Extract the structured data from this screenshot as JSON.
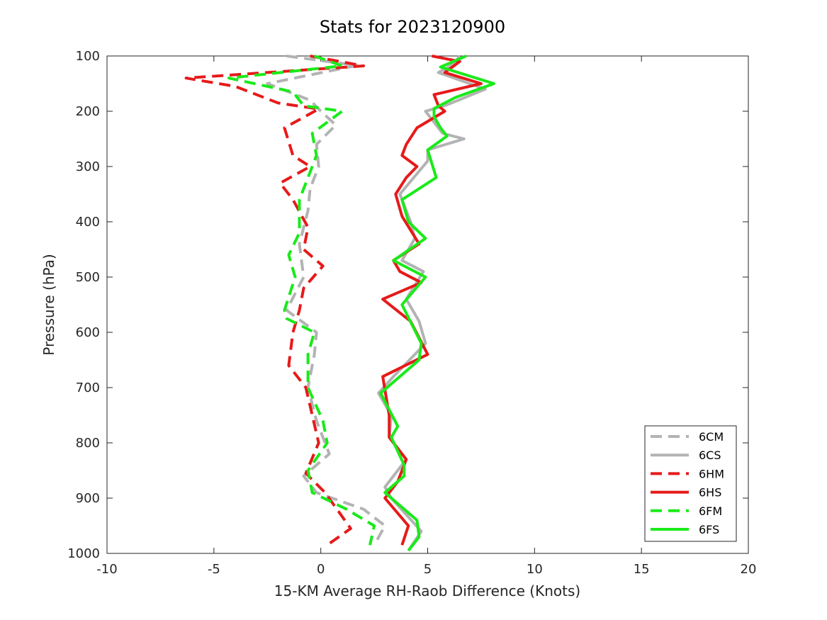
{
  "chart_data": {
    "type": "line",
    "title": "Stats for 2023120900",
    "xlabel": "15-KM Average RH-Raob Difference (Knots)",
    "ylabel": "Pressure (hPa)",
    "xlim": [
      -10,
      20
    ],
    "ylim": [
      100,
      1000
    ],
    "y_reversed": true,
    "x_ticks": [
      -10,
      -5,
      0,
      5,
      10,
      15,
      20
    ],
    "y_ticks": [
      100,
      200,
      300,
      400,
      500,
      600,
      700,
      800,
      900,
      1000
    ],
    "legend_location": "bottom-right",
    "grid": false,
    "series": [
      {
        "name": "6CM",
        "color": "#b3b3b3",
        "dashed": true,
        "points": [
          [
            -1.6,
            100
          ],
          [
            1.7,
            117
          ],
          [
            -2.5,
            150
          ],
          [
            -0.5,
            180
          ],
          [
            -0.1,
            196
          ],
          [
            0.7,
            225
          ],
          [
            -0.2,
            260
          ],
          [
            -0.1,
            300
          ],
          [
            -0.5,
            340
          ],
          [
            -0.6,
            380
          ],
          [
            -1.0,
            440
          ],
          [
            -0.8,
            500
          ],
          [
            -1.6,
            560
          ],
          [
            -0.2,
            600
          ],
          [
            -0.3,
            640
          ],
          [
            -0.6,
            700
          ],
          [
            -0.2,
            760
          ],
          [
            0.4,
            820
          ],
          [
            -0.8,
            860
          ],
          [
            -0.2,
            890
          ],
          [
            2.0,
            920
          ],
          [
            3.0,
            950
          ],
          [
            2.5,
            985
          ]
        ]
      },
      {
        "name": "6CS",
        "color": "#b3b3b3",
        "dashed": false,
        "points": [
          [
            6.5,
            100
          ],
          [
            6.2,
            115
          ],
          [
            5.5,
            130
          ],
          [
            7.7,
            160
          ],
          [
            5.8,
            190
          ],
          [
            4.9,
            200
          ],
          [
            5.7,
            240
          ],
          [
            6.7,
            250
          ],
          [
            5.0,
            270
          ],
          [
            5.0,
            290
          ],
          [
            3.7,
            350
          ],
          [
            4.2,
            400
          ],
          [
            4.4,
            430
          ],
          [
            3.8,
            470
          ],
          [
            4.8,
            490
          ],
          [
            4.0,
            540
          ],
          [
            4.6,
            580
          ],
          [
            4.9,
            620
          ],
          [
            3.4,
            680
          ],
          [
            2.7,
            710
          ],
          [
            3.3,
            750
          ],
          [
            3.2,
            790
          ],
          [
            4.0,
            830
          ],
          [
            3.0,
            880
          ],
          [
            3.3,
            900
          ],
          [
            4.7,
            960
          ],
          [
            4.1,
            995
          ]
        ]
      },
      {
        "name": "6HM",
        "color": "#e61a1a",
        "dashed": true,
        "points": [
          [
            -0.5,
            100
          ],
          [
            2.0,
            118
          ],
          [
            -6.3,
            140
          ],
          [
            -4.0,
            155
          ],
          [
            -2.0,
            185
          ],
          [
            -0.1,
            196
          ],
          [
            -1.7,
            230
          ],
          [
            -1.3,
            280
          ],
          [
            -0.5,
            300
          ],
          [
            -1.9,
            330
          ],
          [
            -1.3,
            360
          ],
          [
            -0.6,
            410
          ],
          [
            -0.8,
            450
          ],
          [
            0.1,
            480
          ],
          [
            -0.8,
            520
          ],
          [
            -1.0,
            560
          ],
          [
            -1.3,
            600
          ],
          [
            -1.5,
            660
          ],
          [
            -0.7,
            700
          ],
          [
            -0.1,
            800
          ],
          [
            -0.7,
            855
          ],
          [
            0.2,
            890
          ],
          [
            1.4,
            955
          ],
          [
            0.3,
            985
          ]
        ]
      },
      {
        "name": "6HS",
        "color": "#e61a1a",
        "dashed": false,
        "points": [
          [
            5.2,
            100
          ],
          [
            6.5,
            110
          ],
          [
            5.8,
            130
          ],
          [
            7.5,
            150
          ],
          [
            5.3,
            170
          ],
          [
            5.5,
            190
          ],
          [
            5.8,
            200
          ],
          [
            4.5,
            230
          ],
          [
            4.0,
            260
          ],
          [
            3.8,
            280
          ],
          [
            4.5,
            300
          ],
          [
            4.0,
            320
          ],
          [
            3.5,
            350
          ],
          [
            3.8,
            390
          ],
          [
            4.6,
            440
          ],
          [
            3.4,
            470
          ],
          [
            3.7,
            490
          ],
          [
            4.7,
            510
          ],
          [
            2.9,
            540
          ],
          [
            4.2,
            580
          ],
          [
            5.0,
            640
          ],
          [
            2.9,
            680
          ],
          [
            3.2,
            750
          ],
          [
            3.2,
            790
          ],
          [
            4.0,
            830
          ],
          [
            3.6,
            870
          ],
          [
            3.0,
            900
          ],
          [
            4.1,
            950
          ],
          [
            3.8,
            985
          ]
        ]
      },
      {
        "name": "6FM",
        "color": "#1aea1a",
        "dashed": true,
        "points": [
          [
            -0.3,
            100
          ],
          [
            1.0,
            118
          ],
          [
            -4.3,
            140
          ],
          [
            -1.3,
            165
          ],
          [
            -0.8,
            190
          ],
          [
            1.0,
            200
          ],
          [
            -0.4,
            240
          ],
          [
            -0.2,
            280
          ],
          [
            -0.6,
            320
          ],
          [
            -1.0,
            360
          ],
          [
            -1.0,
            420
          ],
          [
            -1.5,
            460
          ],
          [
            -1.2,
            500
          ],
          [
            -1.7,
            560
          ],
          [
            -1.6,
            575
          ],
          [
            -0.3,
            600
          ],
          [
            -0.6,
            640
          ],
          [
            -0.6,
            700
          ],
          [
            0.1,
            760
          ],
          [
            0.3,
            800
          ],
          [
            -0.6,
            850
          ],
          [
            -0.4,
            890
          ],
          [
            1.2,
            920
          ],
          [
            2.5,
            950
          ],
          [
            2.3,
            985
          ]
        ]
      },
      {
        "name": "6FS",
        "color": "#1aea1a",
        "dashed": false,
        "points": [
          [
            6.8,
            100
          ],
          [
            5.6,
            120
          ],
          [
            8.1,
            150
          ],
          [
            6.3,
            175
          ],
          [
            5.3,
            195
          ],
          [
            5.3,
            210
          ],
          [
            5.6,
            230
          ],
          [
            5.9,
            245
          ],
          [
            5.0,
            270
          ],
          [
            5.4,
            320
          ],
          [
            3.8,
            360
          ],
          [
            4.1,
            400
          ],
          [
            4.9,
            430
          ],
          [
            3.4,
            470
          ],
          [
            4.9,
            500
          ],
          [
            3.8,
            550
          ],
          [
            4.7,
            620
          ],
          [
            4.6,
            650
          ],
          [
            2.8,
            710
          ],
          [
            3.6,
            770
          ],
          [
            3.3,
            790
          ],
          [
            3.9,
            840
          ],
          [
            3.9,
            860
          ],
          [
            3.0,
            890
          ],
          [
            4.5,
            940
          ],
          [
            4.6,
            970
          ],
          [
            4.1,
            995
          ]
        ]
      }
    ]
  }
}
